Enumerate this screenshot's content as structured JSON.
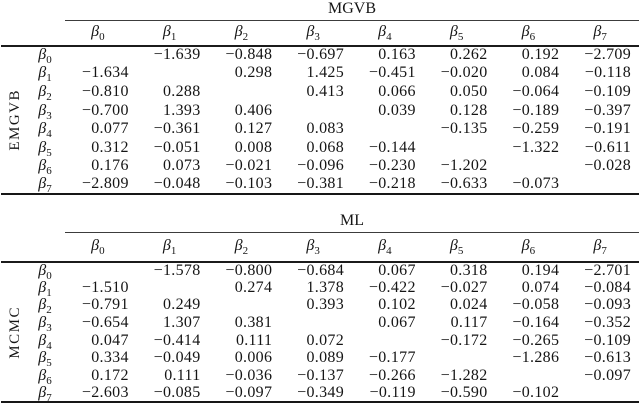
{
  "page": {
    "background": "#ffffff",
    "text_color": "#151515",
    "rule_color": "#1a1a1a"
  },
  "tables": [
    {
      "title": "MGVB",
      "side_label": "EMGVB",
      "col_headers": [
        "β0",
        "β1",
        "β2",
        "β3",
        "β4",
        "β5",
        "β6",
        "β7"
      ],
      "rows": [
        {
          "label": "β0",
          "values": [
            "",
            "−1.639",
            "−0.848",
            "−0.697",
            "0.163",
            "0.262",
            "0.192",
            "−2.709"
          ]
        },
        {
          "label": "β1",
          "values": [
            "−1.634",
            "",
            "0.298",
            "1.425",
            "−0.451",
            "−0.020",
            "0.084",
            "−0.118"
          ]
        },
        {
          "label": "β2",
          "values": [
            "−0.810",
            "0.288",
            "",
            "0.413",
            "0.066",
            "0.050",
            "−0.064",
            "−0.109"
          ]
        },
        {
          "label": "β3",
          "values": [
            "−0.700",
            "1.393",
            "0.406",
            "",
            "0.039",
            "0.128",
            "−0.189",
            "−0.397"
          ]
        },
        {
          "label": "β4",
          "values": [
            "0.077",
            "−0.361",
            "0.127",
            "0.083",
            "",
            "−0.135",
            "−0.259",
            "−0.191"
          ]
        },
        {
          "label": "β5",
          "values": [
            "0.312",
            "−0.051",
            "0.008",
            "0.068",
            "−0.144",
            "",
            "−1.322",
            "−0.611"
          ]
        },
        {
          "label": "β6",
          "values": [
            "0.176",
            "0.073",
            "−0.021",
            "−0.096",
            "−0.230",
            "−1.202",
            "",
            "−0.028"
          ]
        },
        {
          "label": "β7",
          "values": [
            "−2.809",
            "−0.048",
            "−0.103",
            "−0.381",
            "−0.218",
            "−0.633",
            "−0.073",
            ""
          ]
        }
      ]
    },
    {
      "title": "ML",
      "side_label": "MCMC",
      "col_headers": [
        "β0",
        "β1",
        "β2",
        "β3",
        "β4",
        "β5",
        "β6",
        "β7"
      ],
      "rows": [
        {
          "label": "β0",
          "values": [
            "",
            "−1.578",
            "−0.800",
            "−0.684",
            "0.067",
            "0.318",
            "0.194",
            "−2.701"
          ]
        },
        {
          "label": "β1",
          "values": [
            "−1.510",
            "",
            "0.274",
            "1.378",
            "−0.422",
            "−0.027",
            "0.074",
            "−0.084"
          ]
        },
        {
          "label": "β2",
          "values": [
            "−0.791",
            "0.249",
            "",
            "0.393",
            "0.102",
            "0.024",
            "−0.058",
            "−0.093"
          ]
        },
        {
          "label": "β3",
          "values": [
            "−0.654",
            "1.307",
            "0.381",
            "",
            "0.067",
            "0.117",
            "−0.164",
            "−0.352"
          ]
        },
        {
          "label": "β4",
          "values": [
            "0.047",
            "−0.414",
            "0.111",
            "0.072",
            "",
            "−0.172",
            "−0.265",
            "−0.109"
          ]
        },
        {
          "label": "β5",
          "values": [
            "0.334",
            "−0.049",
            "0.006",
            "0.089",
            "−0.177",
            "",
            "−1.286",
            "−0.613"
          ]
        },
        {
          "label": "β6",
          "values": [
            "0.172",
            "0.111",
            "−0.036",
            "−0.137",
            "−0.266",
            "−1.282",
            "",
            "−0.097"
          ]
        },
        {
          "label": "β7",
          "values": [
            "−2.603",
            "−0.085",
            "−0.097",
            "−0.349",
            "−0.119",
            "−0.590",
            "−0.102",
            ""
          ]
        }
      ]
    }
  ]
}
